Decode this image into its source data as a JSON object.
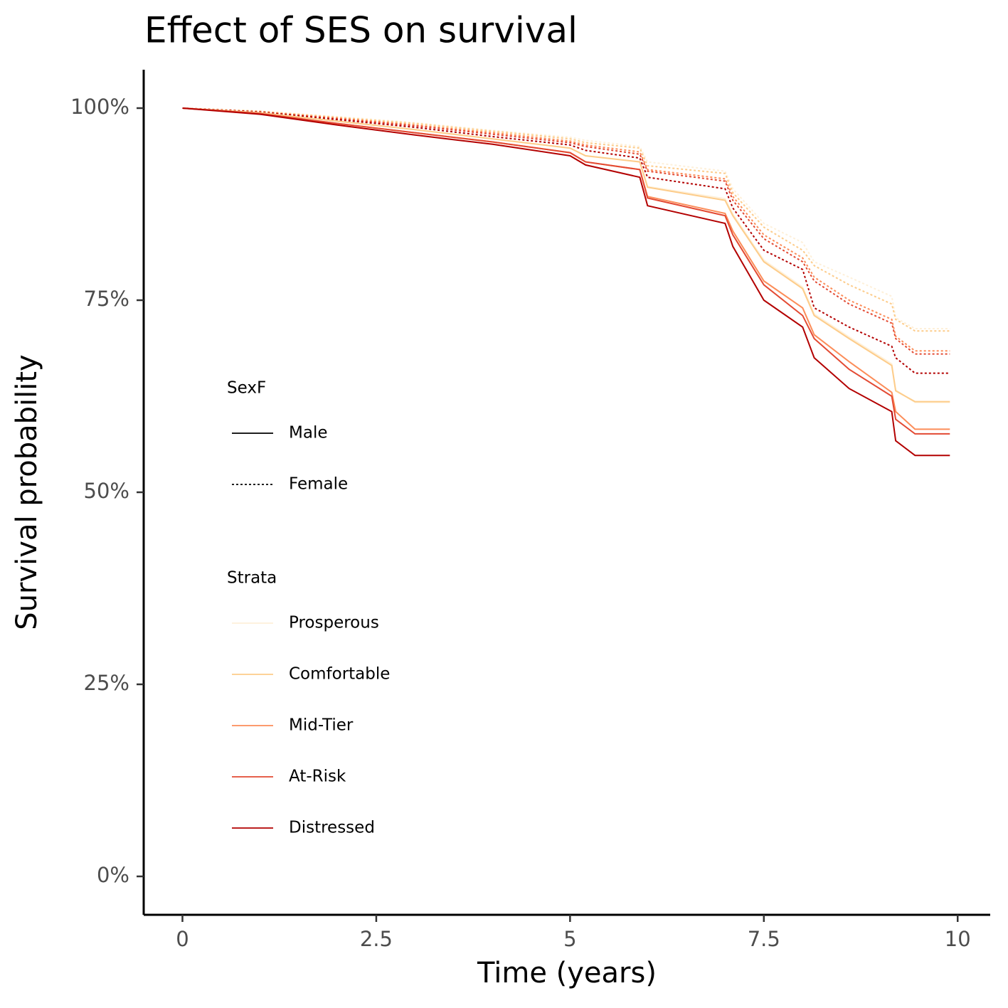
{
  "chart_data": {
    "type": "line",
    "title": "Effect of SES on survival",
    "x_label": "Time (years)",
    "y_label": "Survival probability",
    "xlim": [
      -0.5,
      10.42
    ],
    "ylim": [
      -5,
      105
    ],
    "xticks": [
      0,
      2.5,
      5,
      7.5,
      10
    ],
    "yticks": [
      {
        "value": 0,
        "label": "0%"
      },
      {
        "value": 25,
        "label": "25%"
      },
      {
        "value": 50,
        "label": "50%"
      },
      {
        "value": 75,
        "label": "75%"
      },
      {
        "value": 100,
        "label": "100%"
      }
    ],
    "grid": false,
    "x": [
      0,
      1,
      2,
      3,
      4,
      5,
      5.2,
      5.9,
      6,
      7,
      7.1,
      7.5,
      8,
      8.15,
      8.6,
      9.15,
      9.2,
      9.45,
      9.9
    ],
    "legends": [
      {
        "title": "SexF",
        "entries": [
          {
            "label": "Male",
            "dash": "solid"
          },
          {
            "label": "Female",
            "dash": "dotted"
          }
        ]
      },
      {
        "title": "Strata",
        "entries": [
          {
            "label": "Prosperous",
            "color": "#fef0d9"
          },
          {
            "label": "Comfortable",
            "color": "#fdcc8a"
          },
          {
            "label": "Mid-Tier",
            "color": "#fc8d59"
          },
          {
            "label": "At-Risk",
            "color": "#e34a33"
          },
          {
            "label": "Distressed",
            "color": "#b30000"
          }
        ]
      }
    ],
    "series": [
      {
        "strata": "Prosperous",
        "sex": "Female",
        "color": "#fef0d9",
        "dash": "dotted",
        "values": [
          100,
          99.6,
          98.9,
          98.1,
          97.1,
          96.2,
          95.8,
          95,
          93,
          91.8,
          89.5,
          85,
          82.5,
          80,
          78,
          75.5,
          72.7,
          71.3,
          71.3
        ]
      },
      {
        "strata": "Comfortable",
        "sex": "Female",
        "color": "#fdcc8a",
        "dash": "dotted",
        "values": [
          100,
          99.6,
          98.8,
          98,
          97,
          96,
          95.5,
          94.8,
          92.5,
          91.5,
          89,
          84.5,
          81.5,
          79.5,
          77,
          74.5,
          72.5,
          71,
          71
        ]
      },
      {
        "strata": "Mid-Tier",
        "sex": "Female",
        "color": "#fc8d59",
        "dash": "dotted",
        "values": [
          100,
          99.5,
          98.7,
          97.8,
          96.8,
          95.7,
          95.2,
          94.3,
          92,
          90.8,
          88.5,
          83.5,
          80.5,
          78,
          75,
          72.5,
          70.3,
          68.4,
          68.4
        ]
      },
      {
        "strata": "At-Risk",
        "sex": "Female",
        "color": "#e34a33",
        "dash": "dotted",
        "values": [
          100,
          99.5,
          98.6,
          97.7,
          96.6,
          95.5,
          95,
          94,
          91.8,
          90.5,
          88,
          83,
          80,
          77.5,
          74.5,
          72,
          70,
          68,
          68
        ]
      },
      {
        "strata": "Distressed",
        "sex": "Female",
        "color": "#b30000",
        "dash": "dotted",
        "values": [
          100,
          99.5,
          98.5,
          97.5,
          96.3,
          95.2,
          94.5,
          93.5,
          91,
          89.5,
          87,
          81.5,
          79,
          74,
          71.5,
          69,
          67.5,
          65.5,
          65.5
        ]
      },
      {
        "strata": "Prosperous",
        "sex": "Male",
        "color": "#fef0d9",
        "dash": "solid",
        "values": [
          100,
          99.4,
          98.3,
          97.2,
          96,
          94.8,
          93.8,
          93,
          89.8,
          88.2,
          86.2,
          80.2,
          76.7,
          73.2,
          70.2,
          66.7,
          63.3,
          61.7,
          61.7
        ]
      },
      {
        "strata": "Comfortable",
        "sex": "Male",
        "color": "#fdcc8a",
        "dash": "solid",
        "values": [
          100,
          99.4,
          98.3,
          97.2,
          96,
          94.8,
          93.8,
          93,
          89.7,
          88,
          86,
          80,
          76.5,
          73,
          70,
          66.5,
          63.2,
          61.8,
          61.8
        ]
      },
      {
        "strata": "Mid-Tier",
        "sex": "Male",
        "color": "#fc8d59",
        "dash": "solid",
        "values": [
          100,
          99.3,
          98,
          96.8,
          95.6,
          94.2,
          93,
          92,
          88.5,
          86.3,
          84,
          77.5,
          74,
          70.5,
          67,
          63,
          60.5,
          58.2,
          58.2
        ]
      },
      {
        "strata": "At-Risk",
        "sex": "Male",
        "color": "#e34a33",
        "dash": "solid",
        "values": [
          100,
          99.3,
          98,
          96.8,
          95.6,
          94.2,
          93,
          92,
          88.3,
          86,
          83.5,
          77,
          73,
          70,
          66,
          62.5,
          59.5,
          57.6,
          57.6
        ]
      },
      {
        "strata": "Distressed",
        "sex": "Male",
        "color": "#b30000",
        "dash": "solid",
        "values": [
          100,
          99.2,
          97.8,
          96.5,
          95.3,
          93.8,
          92.6,
          91,
          87.3,
          85,
          82,
          75,
          71.5,
          67.5,
          63.5,
          60.5,
          56.7,
          54.8,
          54.8
        ]
      }
    ]
  }
}
